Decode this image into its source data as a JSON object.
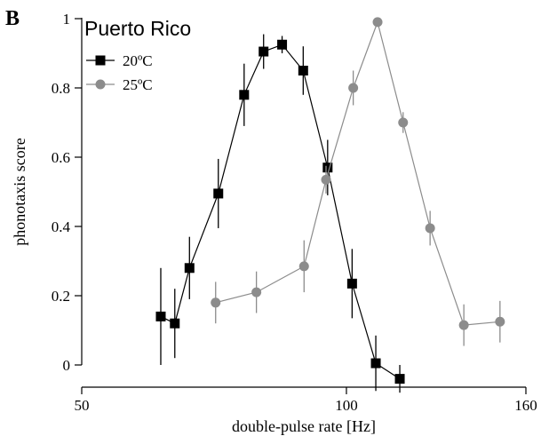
{
  "panel_letter": "B",
  "chart_data": {
    "type": "line",
    "title": "Puerto Rico",
    "xlabel": "double-pulse rate [Hz]",
    "ylabel": "phonotaxis score",
    "x_scale": "log",
    "xlim": [
      50,
      160
    ],
    "ylim": [
      0,
      1
    ],
    "x_ticks": [
      50,
      100,
      160
    ],
    "x_tick_labels": [
      "50",
      "100",
      "160"
    ],
    "y_ticks": [
      0,
      0.2,
      0.4,
      0.6,
      0.8,
      1
    ],
    "y_tick_labels": [
      "0",
      "0.2",
      "0.4",
      "0.6",
      "0.8",
      "1"
    ],
    "legend_position": "top-left",
    "series": [
      {
        "name": "20ºC",
        "marker": "square",
        "color": "#000000",
        "x": [
          61.5,
          63.8,
          66.3,
          71.5,
          76.5,
          80.5,
          84.5,
          89.3,
          95.2,
          101.5,
          108,
          115
        ],
        "y": [
          0.14,
          0.12,
          0.28,
          0.495,
          0.78,
          0.905,
          0.925,
          0.85,
          0.57,
          0.235,
          0.005,
          -0.04
        ],
        "err": [
          0.14,
          0.1,
          0.09,
          0.1,
          0.09,
          0.05,
          0.025,
          0.07,
          0.08,
          0.1,
          0.08,
          0.04
        ]
      },
      {
        "name": "25ºC",
        "marker": "circle",
        "color": "#8c8c8c",
        "x": [
          71,
          79,
          89.5,
          94.8,
          101.8,
          108.5,
          116,
          124.5,
          136,
          149.5
        ],
        "y": [
          0.18,
          0.21,
          0.285,
          0.535,
          0.8,
          0.99,
          0.7,
          0.395,
          0.115,
          0.125
        ],
        "err": [
          0.06,
          0.06,
          0.075,
          0.04,
          0.05,
          0.0,
          0.03,
          0.05,
          0.06,
          0.06
        ]
      }
    ]
  }
}
